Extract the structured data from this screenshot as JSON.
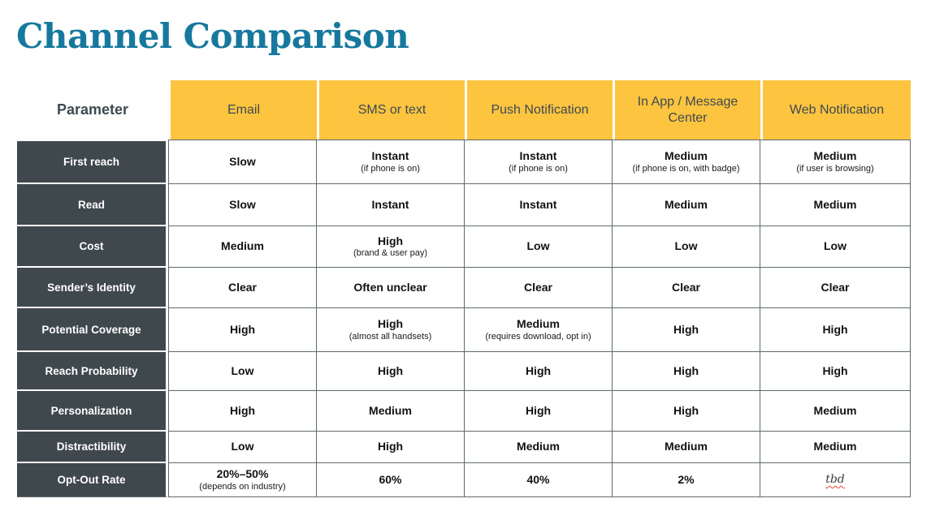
{
  "page": {
    "title": "Channel Comparison"
  },
  "colors": {
    "title_teal": "#17789E",
    "header_yellow": "#FDC43F",
    "header_text": "#3E4A52",
    "row_label_slate": "#3F484D",
    "cell_border": "#60696D",
    "tbd_squiggle_red": "#E94335"
  },
  "table": {
    "param_header": "Parameter",
    "channels": [
      "Email",
      "SMS or text",
      "Push Notification",
      "In App / Message Center",
      "Web Notification"
    ],
    "rows": [
      {
        "label": "First reach",
        "cells": [
          {
            "main": "Slow"
          },
          {
            "main": "Instant",
            "note": "(if phone is on)"
          },
          {
            "main": "Instant",
            "note": "(if phone is on)"
          },
          {
            "main": "Medium",
            "note": "(if phone is on, with badge)"
          },
          {
            "main": "Medium",
            "note": "(if user is browsing)"
          }
        ]
      },
      {
        "label": "Read",
        "cells": [
          {
            "main": "Slow"
          },
          {
            "main": "Instant"
          },
          {
            "main": "Instant"
          },
          {
            "main": "Medium"
          },
          {
            "main": "Medium"
          }
        ]
      },
      {
        "label": "Cost",
        "cells": [
          {
            "main": "Medium"
          },
          {
            "main": "High",
            "note": "(brand & user pay)"
          },
          {
            "main": "Low"
          },
          {
            "main": "Low"
          },
          {
            "main": "Low"
          }
        ]
      },
      {
        "label": "Sender’s Identity",
        "cells": [
          {
            "main": "Clear"
          },
          {
            "main": "Often unclear"
          },
          {
            "main": "Clear"
          },
          {
            "main": "Clear"
          },
          {
            "main": "Clear"
          }
        ]
      },
      {
        "label": "Potential Coverage",
        "cells": [
          {
            "main": "High"
          },
          {
            "main": "High",
            "note": "(almost all handsets)"
          },
          {
            "main": "Medium",
            "note": "(requires download, opt in)"
          },
          {
            "main": "High"
          },
          {
            "main": "High"
          }
        ]
      },
      {
        "label": "Reach Probability",
        "cells": [
          {
            "main": "Low"
          },
          {
            "main": "High"
          },
          {
            "main": "High"
          },
          {
            "main": "High"
          },
          {
            "main": "High"
          }
        ]
      },
      {
        "label": "Personalization",
        "cells": [
          {
            "main": "High"
          },
          {
            "main": "Medium"
          },
          {
            "main": "High"
          },
          {
            "main": "High"
          },
          {
            "main": "Medium"
          }
        ]
      },
      {
        "label": "Distractibility",
        "cells": [
          {
            "main": "Low"
          },
          {
            "main": "High"
          },
          {
            "main": "Medium"
          },
          {
            "main": "Medium"
          },
          {
            "main": "Medium"
          }
        ]
      },
      {
        "label": "Opt-Out Rate",
        "cells": [
          {
            "main": "20%–50%",
            "note": "(depends on industry)"
          },
          {
            "main": "60%"
          },
          {
            "main": "40%"
          },
          {
            "main": "2%"
          },
          {
            "main": "tbd"
          }
        ]
      }
    ]
  },
  "chart_data": {
    "type": "table",
    "title": "Channel Comparison",
    "columns": [
      "Parameter",
      "Email",
      "SMS or text",
      "Push Notification",
      "In App / Message Center",
      "Web Notification"
    ],
    "rows": [
      [
        "First reach",
        "Slow",
        "Instant (if phone is on)",
        "Instant (if phone is on)",
        "Medium (if phone is on, with badge)",
        "Medium (if user is browsing)"
      ],
      [
        "Read",
        "Slow",
        "Instant",
        "Instant",
        "Medium",
        "Medium"
      ],
      [
        "Cost",
        "Medium",
        "High (brand & user pay)",
        "Low",
        "Low",
        "Low"
      ],
      [
        "Sender’s Identity",
        "Clear",
        "Often unclear",
        "Clear",
        "Clear",
        "Clear"
      ],
      [
        "Potential Coverage",
        "High",
        "High (almost all handsets)",
        "Medium (requires download, opt in)",
        "High",
        "High"
      ],
      [
        "Reach Probability",
        "Low",
        "High",
        "High",
        "High",
        "High"
      ],
      [
        "Personalization",
        "High",
        "Medium",
        "High",
        "High",
        "Medium"
      ],
      [
        "Distractibility",
        "Low",
        "High",
        "Medium",
        "Medium",
        "Medium"
      ],
      [
        "Opt-Out Rate",
        "20%–50% (depends on industry)",
        "60%",
        "40%",
        "2%",
        "tbd"
      ]
    ]
  }
}
